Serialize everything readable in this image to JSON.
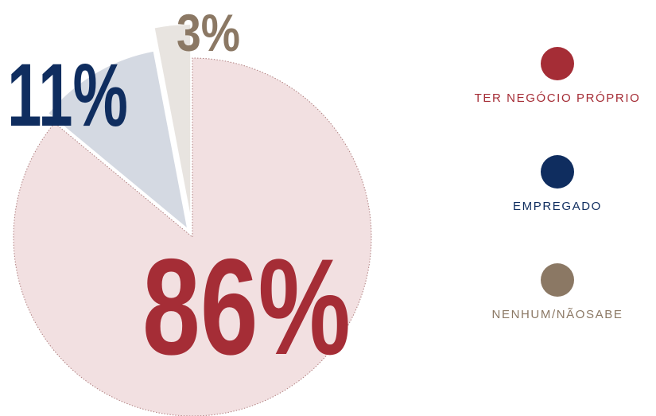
{
  "chart_data": {
    "type": "pie",
    "categories": [
      "TER NEGÓCIO PRÓPRIO",
      "EMPREGADO",
      "NENHUM/NÃOSABE"
    ],
    "values": [
      86,
      11,
      3
    ],
    "value_labels": [
      "86%",
      "11%",
      "3%"
    ],
    "colors": [
      "#a52d36",
      "#0f2d5f",
      "#8b7864"
    ],
    "legend": "right"
  }
}
